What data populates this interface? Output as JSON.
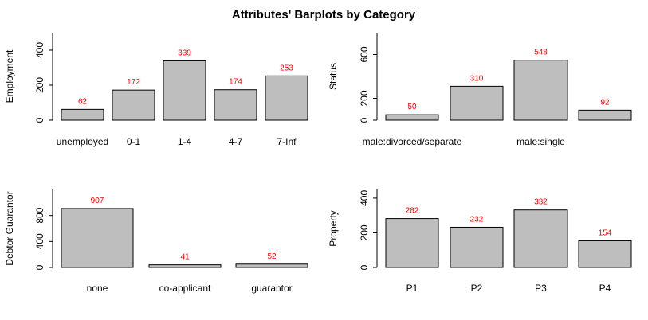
{
  "title": "Attributes' Barplots by Category",
  "chart_data": [
    {
      "type": "bar",
      "ylabel": "Employment",
      "categories": [
        "unemployed",
        "0-1",
        "1-4",
        "4-7",
        "7-Inf"
      ],
      "category_labels_shown": [
        "unemployed",
        "0-1",
        "1-4",
        "4-7",
        "7-Inf"
      ],
      "values": [
        62,
        172,
        339,
        174,
        253
      ],
      "ylim": [
        0,
        500
      ],
      "yticks": [
        0,
        200,
        400
      ],
      "bar_color": "#bebebe",
      "label_color": "#ff0000"
    },
    {
      "type": "bar",
      "ylabel": "Status",
      "categories": [
        "male:divorced/separate",
        "",
        "male:single",
        ""
      ],
      "category_labels_shown": [
        "male:divorced/separate",
        "",
        "male:single",
        ""
      ],
      "values": [
        50,
        310,
        548,
        92
      ],
      "ylim": [
        0,
        800
      ],
      "yticks": [
        0,
        200,
        600
      ],
      "bar_color": "#bebebe",
      "label_color": "#ff0000"
    },
    {
      "type": "bar",
      "ylabel": "Debtor Guarantor",
      "categories": [
        "none",
        "co-applicant",
        "guarantor"
      ],
      "category_labels_shown": [
        "none",
        "co-applicant",
        "guarantor"
      ],
      "values": [
        907,
        41,
        52
      ],
      "ylim": [
        0,
        1200
      ],
      "yticks": [
        0,
        400,
        800
      ],
      "bar_color": "#bebebe",
      "label_color": "#ff0000"
    },
    {
      "type": "bar",
      "ylabel": "Property",
      "categories": [
        "P1",
        "P2",
        "P3",
        "P4"
      ],
      "category_labels_shown": [
        "P1",
        "P2",
        "P3",
        "P4"
      ],
      "values": [
        282,
        232,
        332,
        154
      ],
      "ylim": [
        0,
        450
      ],
      "yticks": [
        0,
        200,
        400
      ],
      "bar_color": "#bebebe",
      "label_color": "#ff0000"
    }
  ]
}
